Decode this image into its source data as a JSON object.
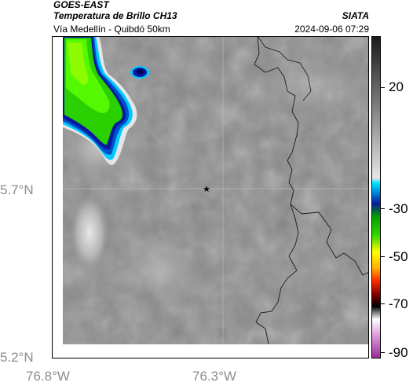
{
  "header": {
    "satellite": "GOES-EAST",
    "product": "Temperatura de Brillo CH13",
    "organization": "SIATA",
    "subtitle": "Vía Medellín - Quibdó 50km",
    "timestamp": "2024-09-06 07:29"
  },
  "map": {
    "lat_labels": [
      "5.7°N",
      "5.2°N"
    ],
    "lon_labels": [
      "76.8°W",
      "76.3°W"
    ],
    "marker_symbol": "★",
    "gridlines": true
  },
  "colorbar": {
    "ticks": [
      "20",
      "-30",
      "-50",
      "-70",
      "-90"
    ],
    "colors": [
      "#1a1a1a",
      "#3a3a3a",
      "#5c5c5c",
      "#7e7e7e",
      "#9f9f9f",
      "#c3c3c3",
      "#e6e6e6",
      "#00e5ff",
      "#0077d6",
      "#0a1a9a",
      "#00a000",
      "#35d800",
      "#ffff00",
      "#ffb000",
      "#ff2a00",
      "#8b0000",
      "#000000",
      "#ffffff",
      "#d58ad3",
      "#9a2e9a"
    ]
  },
  "style": {
    "background_gray": "#8a8a8a",
    "border_color": "#1a1a1a",
    "grid_color": "#b8b8b8",
    "cloud_green": "#2bd000",
    "cloud_bright_green": "#5cff00",
    "cloud_cyan": "#00c8ff",
    "cloud_blue": "#0050c8",
    "cloud_dark_blue": "#0a1aa0",
    "cloud_light": "#e0e0e0"
  }
}
